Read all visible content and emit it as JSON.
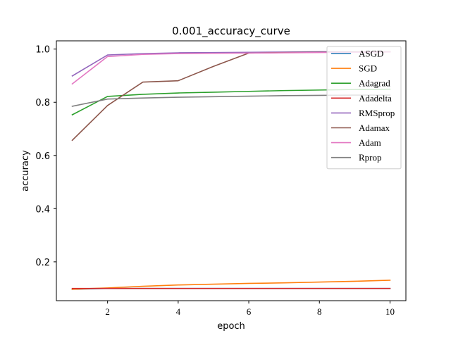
{
  "chart_data": {
    "type": "line",
    "title": "0.001_accuracy_curve",
    "xlabel": "epoch",
    "ylabel": "accuracy",
    "x": [
      1,
      2,
      3,
      4,
      5,
      6,
      7,
      8,
      9,
      10
    ],
    "xlim": [
      0.55,
      10.45
    ],
    "ylim": [
      0.054,
      1.031
    ],
    "xticks": [
      2,
      4,
      6,
      8,
      10
    ],
    "yticks": [
      0.2,
      0.4,
      0.6,
      0.8,
      1.0
    ],
    "xtick_labels": [
      "2",
      "4",
      "6",
      "8",
      "10"
    ],
    "ytick_labels": [
      "0.2",
      "0.4",
      "0.6",
      "0.8",
      "1.0"
    ],
    "grid": false,
    "legend_position": "upper-right",
    "series": [
      {
        "name": "ASGD",
        "color": "#1f77b4",
        "values": [
          0.097,
          0.1,
          0.1,
          0.1,
          0.1,
          0.1,
          0.1,
          0.1,
          0.1,
          0.1
        ]
      },
      {
        "name": "SGD",
        "color": "#ff7f0e",
        "values": [
          0.097,
          0.102,
          0.108,
          0.113,
          0.116,
          0.119,
          0.121,
          0.124,
          0.127,
          0.131
        ]
      },
      {
        "name": "Adagrad",
        "color": "#2ca02c",
        "values": [
          0.753,
          0.822,
          0.83,
          0.835,
          0.838,
          0.841,
          0.844,
          0.846,
          0.848,
          0.849
        ]
      },
      {
        "name": "Adadelta",
        "color": "#d62728",
        "values": [
          0.1,
          0.1,
          0.1,
          0.1,
          0.1,
          0.1,
          0.1,
          0.1,
          0.1,
          0.1
        ]
      },
      {
        "name": "RMSprop",
        "color": "#9467bd",
        "values": [
          0.899,
          0.978,
          0.983,
          0.986,
          0.987,
          0.988,
          0.989,
          0.99,
          0.99,
          0.99
        ]
      },
      {
        "name": "Adamax",
        "color": "#8c564b",
        "values": [
          0.657,
          0.788,
          0.876,
          0.881,
          0.935,
          0.985,
          0.987,
          0.988,
          0.989,
          0.99
        ]
      },
      {
        "name": "Adam",
        "color": "#e377c2",
        "values": [
          0.869,
          0.972,
          0.98,
          0.983,
          0.984,
          0.985,
          0.986,
          0.987,
          0.988,
          0.989
        ]
      },
      {
        "name": "Rprop",
        "color": "#7f7f7f",
        "values": [
          0.785,
          0.812,
          0.816,
          0.819,
          0.821,
          0.823,
          0.825,
          0.826,
          0.827,
          0.827
        ]
      }
    ]
  }
}
